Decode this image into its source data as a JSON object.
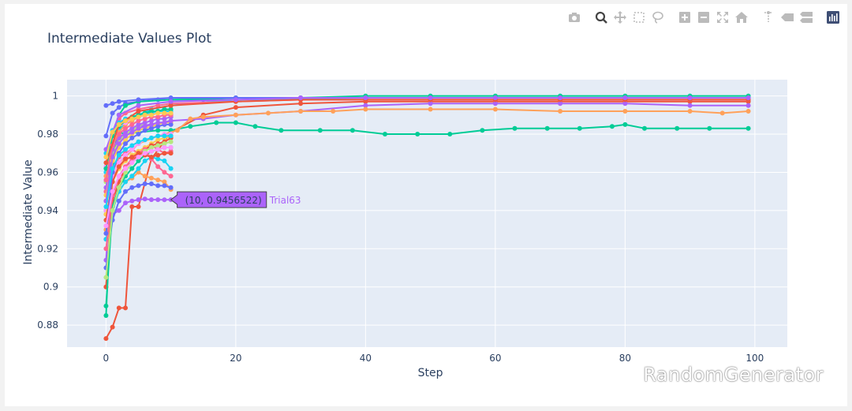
{
  "modebar": {
    "icons": [
      "camera-icon",
      "zoom-icon",
      "pan-icon",
      "box-select-icon",
      "lasso-icon",
      "zoom-in-icon",
      "zoom-out-icon",
      "autoscale-icon",
      "reset-axes-icon",
      "spike-lines-icon",
      "hover-closest-icon",
      "hover-compare-icon",
      "plotly-logo-icon"
    ],
    "active_color": "#444444",
    "inactive_color": "#bbbbbb",
    "logo_color": "#3f4f75"
  },
  "watermark": {
    "text": "RandomGenerator",
    "icon": "wechat-icon"
  },
  "colors": {
    "plot_bg": "#e5ecf6",
    "palette": [
      "#636efa",
      "#EF553B",
      "#00cc96",
      "#ab63fa",
      "#FFA15A",
      "#19d3f3",
      "#FF6692",
      "#B6E880",
      "#FF97FF",
      "#FECB52"
    ]
  },
  "chart_data": {
    "type": "line",
    "title": "Intermediate Values Plot",
    "xlabel": "Step",
    "ylabel": "Intermediate Value",
    "xlim": [
      -6,
      105
    ],
    "ylim": [
      0.8685,
      1.0085
    ],
    "xticks": [
      0,
      20,
      40,
      60,
      80,
      100
    ],
    "xtick_labels": [
      "0",
      "20",
      "40",
      "60",
      "80",
      "100"
    ],
    "yticks": [
      0.88,
      0.9,
      0.92,
      0.94,
      0.96,
      0.98,
      1.0
    ],
    "ytick_labels": [
      "0.88",
      "0.9",
      "0.92",
      "0.94",
      "0.96",
      "0.98",
      "1"
    ],
    "grid": true,
    "legend": "none",
    "hover": {
      "trial": "Trial63",
      "x": 10,
      "y": 0.9456522,
      "text": "(10, 0.9456522)",
      "color": "#ab63fa"
    },
    "series": [
      {
        "color": "#636efa",
        "x": [
          0,
          1,
          2,
          3,
          5,
          8,
          10,
          15,
          20,
          30,
          40,
          50,
          60,
          70,
          80,
          90,
          99
        ],
        "y": [
          0.979,
          0.991,
          0.994,
          0.996,
          0.997,
          0.998,
          0.998,
          0.998,
          0.999,
          0.999,
          0.999,
          0.999,
          0.999,
          0.999,
          0.999,
          0.999,
          0.999
        ]
      },
      {
        "color": "#EF553B",
        "x": [
          0,
          1,
          2,
          3,
          4,
          5,
          7,
          10,
          15,
          20,
          30,
          40,
          50,
          60,
          70,
          80,
          90,
          99
        ],
        "y": [
          0.873,
          0.879,
          0.889,
          0.889,
          0.942,
          0.942,
          0.967,
          0.981,
          0.99,
          0.994,
          0.996,
          0.997,
          0.997,
          0.997,
          0.997,
          0.997,
          0.997,
          0.997
        ]
      },
      {
        "color": "#00cc96",
        "x": [
          0,
          1,
          2,
          3,
          5,
          8,
          10,
          13,
          17,
          20,
          23,
          27,
          33,
          38,
          43,
          48,
          53,
          58,
          63,
          68,
          73,
          78,
          80,
          83,
          88,
          93,
          99
        ],
        "y": [
          0.94,
          0.975,
          0.981,
          0.98,
          0.981,
          0.982,
          0.982,
          0.984,
          0.986,
          0.986,
          0.984,
          0.982,
          0.982,
          0.982,
          0.98,
          0.98,
          0.98,
          0.982,
          0.983,
          0.983,
          0.983,
          0.984,
          0.985,
          0.983,
          0.983,
          0.983,
          0.983
        ]
      },
      {
        "color": "#00cc96",
        "x": [
          0,
          1,
          2,
          3,
          5,
          10,
          20,
          30,
          40,
          50,
          60,
          70,
          80,
          90,
          99
        ],
        "y": [
          0.885,
          0.96,
          0.99,
          0.995,
          0.997,
          0.998,
          0.999,
          0.999,
          1.0,
          1.0,
          1.0,
          1.0,
          1.0,
          1.0,
          1.0
        ]
      },
      {
        "color": "#ab63fa",
        "x": [
          0,
          1,
          2,
          3,
          4,
          5,
          6,
          7,
          8,
          9,
          10
        ],
        "y": [
          0.925,
          0.938,
          0.94,
          0.944,
          0.945,
          0.9457,
          0.946,
          0.9457,
          0.9457,
          0.9456,
          0.9457
        ]
      },
      {
        "color": "#ab63fa",
        "x": [
          0,
          1,
          2,
          5,
          10,
          15,
          20,
          30,
          40,
          50,
          60,
          70,
          80,
          90,
          99
        ],
        "y": [
          0.914,
          0.966,
          0.978,
          0.984,
          0.987,
          0.988,
          0.99,
          0.992,
          0.995,
          0.996,
          0.996,
          0.996,
          0.996,
          0.995,
          0.995
        ]
      },
      {
        "color": "#636efa",
        "x": [
          0,
          1,
          2,
          5,
          10,
          20,
          30,
          40,
          50,
          60,
          70,
          80,
          90,
          99
        ],
        "y": [
          0.995,
          0.996,
          0.997,
          0.998,
          0.999,
          0.999,
          0.999,
          0.999,
          0.999,
          0.999,
          0.999,
          0.999,
          0.999,
          0.999
        ]
      },
      {
        "color": "#FFA15A",
        "x": [
          0,
          1,
          2,
          3,
          5,
          8,
          11,
          13,
          15,
          20,
          25,
          30,
          35,
          40,
          50,
          60,
          70,
          80,
          90,
          95,
          99
        ],
        "y": [
          0.9,
          0.955,
          0.965,
          0.968,
          0.975,
          0.979,
          0.982,
          0.988,
          0.989,
          0.99,
          0.991,
          0.992,
          0.992,
          0.993,
          0.993,
          0.993,
          0.992,
          0.992,
          0.992,
          0.991,
          0.992
        ]
      },
      {
        "color": "#FFA15A",
        "x": [
          0,
          1,
          2,
          3,
          4,
          5,
          6,
          7,
          8,
          9,
          10
        ],
        "y": [
          0.93,
          0.94,
          0.95,
          0.955,
          0.957,
          0.96,
          0.958,
          0.957,
          0.956,
          0.955,
          0.951
        ]
      },
      {
        "color": "#19d3f3",
        "x": [
          0,
          1,
          2,
          3,
          5,
          7,
          10,
          20,
          40,
          60,
          80,
          99
        ],
        "y": [
          0.96,
          0.975,
          0.982,
          0.986,
          0.99,
          0.993,
          0.995,
          0.998,
          0.999,
          0.999,
          0.999,
          0.999
        ]
      },
      {
        "color": "#19d3f3",
        "x": [
          0,
          1,
          2,
          3,
          4,
          5,
          6,
          7,
          8,
          9,
          10
        ],
        "y": [
          0.925,
          0.94,
          0.95,
          0.955,
          0.958,
          0.962,
          0.966,
          0.968,
          0.967,
          0.966,
          0.962
        ]
      },
      {
        "color": "#FF6692",
        "x": [
          0,
          1,
          2,
          3,
          4,
          5,
          6,
          7,
          8,
          9,
          10
        ],
        "y": [
          0.945,
          0.96,
          0.968,
          0.97,
          0.972,
          0.97,
          0.972,
          0.974,
          0.972,
          0.97,
          0.971
        ]
      },
      {
        "color": "#FF6692",
        "x": [
          0,
          1,
          2,
          3,
          5,
          8,
          10,
          20,
          30,
          40,
          50,
          60,
          70,
          80,
          90,
          99
        ],
        "y": [
          0.95,
          0.98,
          0.988,
          0.991,
          0.993,
          0.995,
          0.996,
          0.997,
          0.998,
          0.998,
          0.998,
          0.998,
          0.998,
          0.998,
          0.998,
          0.998
        ]
      },
      {
        "color": "#B6E880",
        "x": [
          0,
          1,
          2,
          3,
          4,
          5,
          6,
          7,
          8,
          9,
          10
        ],
        "y": [
          0.955,
          0.97,
          0.976,
          0.98,
          0.982,
          0.984,
          0.986,
          0.987,
          0.988,
          0.988,
          0.989
        ]
      },
      {
        "color": "#FF97FF",
        "x": [
          0,
          1,
          2,
          3,
          4,
          5,
          6,
          7,
          8,
          9,
          10
        ],
        "y": [
          0.94,
          0.958,
          0.965,
          0.969,
          0.972,
          0.975,
          0.977,
          0.978,
          0.979,
          0.98,
          0.98
        ]
      },
      {
        "color": "#FECB52",
        "x": [
          0,
          1,
          2,
          3,
          4,
          5,
          6,
          7,
          8,
          9,
          10
        ],
        "y": [
          0.938,
          0.955,
          0.962,
          0.966,
          0.969,
          0.971,
          0.973,
          0.975,
          0.977,
          0.978,
          0.979
        ]
      },
      {
        "color": "#EF553B",
        "x": [
          0,
          1,
          2,
          3,
          4,
          5,
          6,
          7,
          8,
          9,
          10
        ],
        "y": [
          0.9,
          0.945,
          0.955,
          0.962,
          0.966,
          0.969,
          0.972,
          0.974,
          0.975,
          0.976,
          0.978
        ]
      },
      {
        "color": "#636efa",
        "x": [
          0,
          1,
          2,
          3,
          4,
          5,
          6,
          7,
          8,
          9,
          10
        ],
        "y": [
          0.91,
          0.935,
          0.945,
          0.95,
          0.952,
          0.953,
          0.954,
          0.954,
          0.953,
          0.953,
          0.952
        ]
      },
      {
        "color": "#00cc96",
        "x": [
          0,
          1,
          2,
          3,
          4,
          5,
          6,
          7,
          8,
          9,
          10
        ],
        "y": [
          0.89,
          0.942,
          0.952,
          0.958,
          0.962,
          0.966,
          0.969,
          0.971,
          0.972,
          0.973,
          0.973
        ]
      },
      {
        "color": "#ab63fa",
        "x": [
          0,
          1,
          2,
          3,
          4,
          5,
          6,
          7,
          8,
          9,
          10
        ],
        "y": [
          0.952,
          0.972,
          0.978,
          0.981,
          0.983,
          0.985,
          0.986,
          0.987,
          0.988,
          0.988,
          0.989
        ]
      },
      {
        "color": "#FFA15A",
        "x": [
          0,
          1,
          2,
          3,
          4,
          5,
          6,
          7,
          8,
          9,
          10
        ],
        "y": [
          0.958,
          0.975,
          0.981,
          0.985,
          0.987,
          0.989,
          0.99,
          0.991,
          0.992,
          0.992,
          0.993
        ]
      },
      {
        "color": "#19d3f3",
        "x": [
          0,
          1,
          2,
          3,
          4,
          5,
          6,
          7,
          8,
          9,
          10
        ],
        "y": [
          0.97,
          0.982,
          0.986,
          0.988,
          0.989,
          0.99,
          0.991,
          0.991,
          0.992,
          0.992,
          0.992
        ]
      },
      {
        "color": "#FF6692",
        "x": [
          0,
          1,
          2,
          3,
          4,
          5,
          6,
          7,
          8,
          9,
          10
        ],
        "y": [
          0.92,
          0.948,
          0.958,
          0.963,
          0.967,
          0.97,
          0.972,
          0.967,
          0.963,
          0.96,
          0.958
        ]
      },
      {
        "color": "#B6E880",
        "x": [
          0,
          1,
          2,
          3,
          4,
          5,
          6,
          7,
          8,
          9,
          10
        ],
        "y": [
          0.905,
          0.94,
          0.952,
          0.96,
          0.965,
          0.968,
          0.971,
          0.973,
          0.974,
          0.975,
          0.976
        ]
      },
      {
        "color": "#FF97FF",
        "x": [
          0,
          1,
          2,
          3,
          4,
          5,
          6,
          7,
          8,
          9,
          10
        ],
        "y": [
          0.963,
          0.978,
          0.984,
          0.986,
          0.988,
          0.989,
          0.99,
          0.99,
          0.991,
          0.991,
          0.991
        ]
      },
      {
        "color": "#FECB52",
        "x": [
          0,
          1,
          2,
          3,
          4,
          5,
          6,
          7,
          8,
          9,
          10
        ],
        "y": [
          0.948,
          0.966,
          0.973,
          0.977,
          0.98,
          0.982,
          0.983,
          0.984,
          0.985,
          0.986,
          0.986
        ]
      },
      {
        "color": "#EF553B",
        "x": [
          0,
          1,
          2,
          3,
          4,
          5,
          6,
          7,
          8,
          9,
          10
        ],
        "y": [
          0.935,
          0.955,
          0.963,
          0.967,
          0.968,
          0.97,
          0.969,
          0.968,
          0.969,
          0.97,
          0.97
        ]
      },
      {
        "color": "#636efa",
        "x": [
          0,
          1,
          2,
          3,
          4,
          5,
          6,
          7,
          8,
          9,
          10
        ],
        "y": [
          0.928,
          0.96,
          0.97,
          0.975,
          0.978,
          0.98,
          0.982,
          0.983,
          0.984,
          0.985,
          0.985
        ]
      },
      {
        "color": "#00cc96",
        "x": [
          0,
          1,
          2,
          3,
          4,
          5,
          6,
          7,
          8,
          9,
          10
        ],
        "y": [
          0.962,
          0.979,
          0.984,
          0.987,
          0.989,
          0.99,
          0.991,
          0.992,
          0.992,
          0.993,
          0.993
        ]
      },
      {
        "color": "#ab63fa",
        "x": [
          0,
          1,
          2,
          3,
          4,
          5,
          6,
          7,
          8,
          9,
          10
        ],
        "y": [
          0.945,
          0.968,
          0.975,
          0.979,
          0.981,
          0.983,
          0.984,
          0.985,
          0.986,
          0.986,
          0.987
        ]
      },
      {
        "color": "#19d3f3",
        "x": [
          0,
          1,
          2,
          3,
          4,
          5,
          6,
          7,
          8,
          9,
          10
        ],
        "y": [
          0.942,
          0.962,
          0.969,
          0.972,
          0.974,
          0.976,
          0.977,
          0.978,
          0.979,
          0.979,
          0.979
        ]
      },
      {
        "color": "#FF6692",
        "x": [
          0,
          1,
          2,
          3,
          4,
          5,
          6,
          7,
          8,
          9,
          10
        ],
        "y": [
          0.956,
          0.974,
          0.98,
          0.983,
          0.985,
          0.987,
          0.988,
          0.989,
          0.989,
          0.99,
          0.99
        ]
      },
      {
        "color": "#EF553B",
        "x": [
          0,
          2,
          5,
          10,
          20,
          30,
          40,
          50,
          60,
          70,
          80,
          90,
          99
        ],
        "y": [
          0.965,
          0.985,
          0.992,
          0.995,
          0.997,
          0.998,
          0.998,
          0.998,
          0.998,
          0.998,
          0.998,
          0.998,
          0.998
        ]
      },
      {
        "color": "#ab63fa",
        "x": [
          0,
          2,
          5,
          10,
          20,
          30,
          40,
          50,
          60,
          70,
          80,
          90,
          99
        ],
        "y": [
          0.972,
          0.99,
          0.995,
          0.997,
          0.998,
          0.999,
          0.999,
          0.999,
          0.999,
          0.999,
          0.999,
          0.999,
          0.999
        ]
      },
      {
        "color": "#FF97FF",
        "x": [
          0,
          1,
          2,
          3,
          4,
          5,
          6,
          7,
          8,
          9,
          10
        ],
        "y": [
          0.932,
          0.95,
          0.958,
          0.962,
          0.965,
          0.968,
          0.97,
          0.971,
          0.972,
          0.973,
          0.973
        ]
      },
      {
        "color": "#FECB52",
        "x": [
          0,
          1,
          2,
          3,
          4,
          5,
          6,
          7,
          8,
          9,
          10
        ],
        "y": [
          0.968,
          0.981,
          0.985,
          0.987,
          0.988,
          0.989,
          0.99,
          0.99,
          0.991,
          0.991,
          0.991
        ]
      }
    ]
  }
}
